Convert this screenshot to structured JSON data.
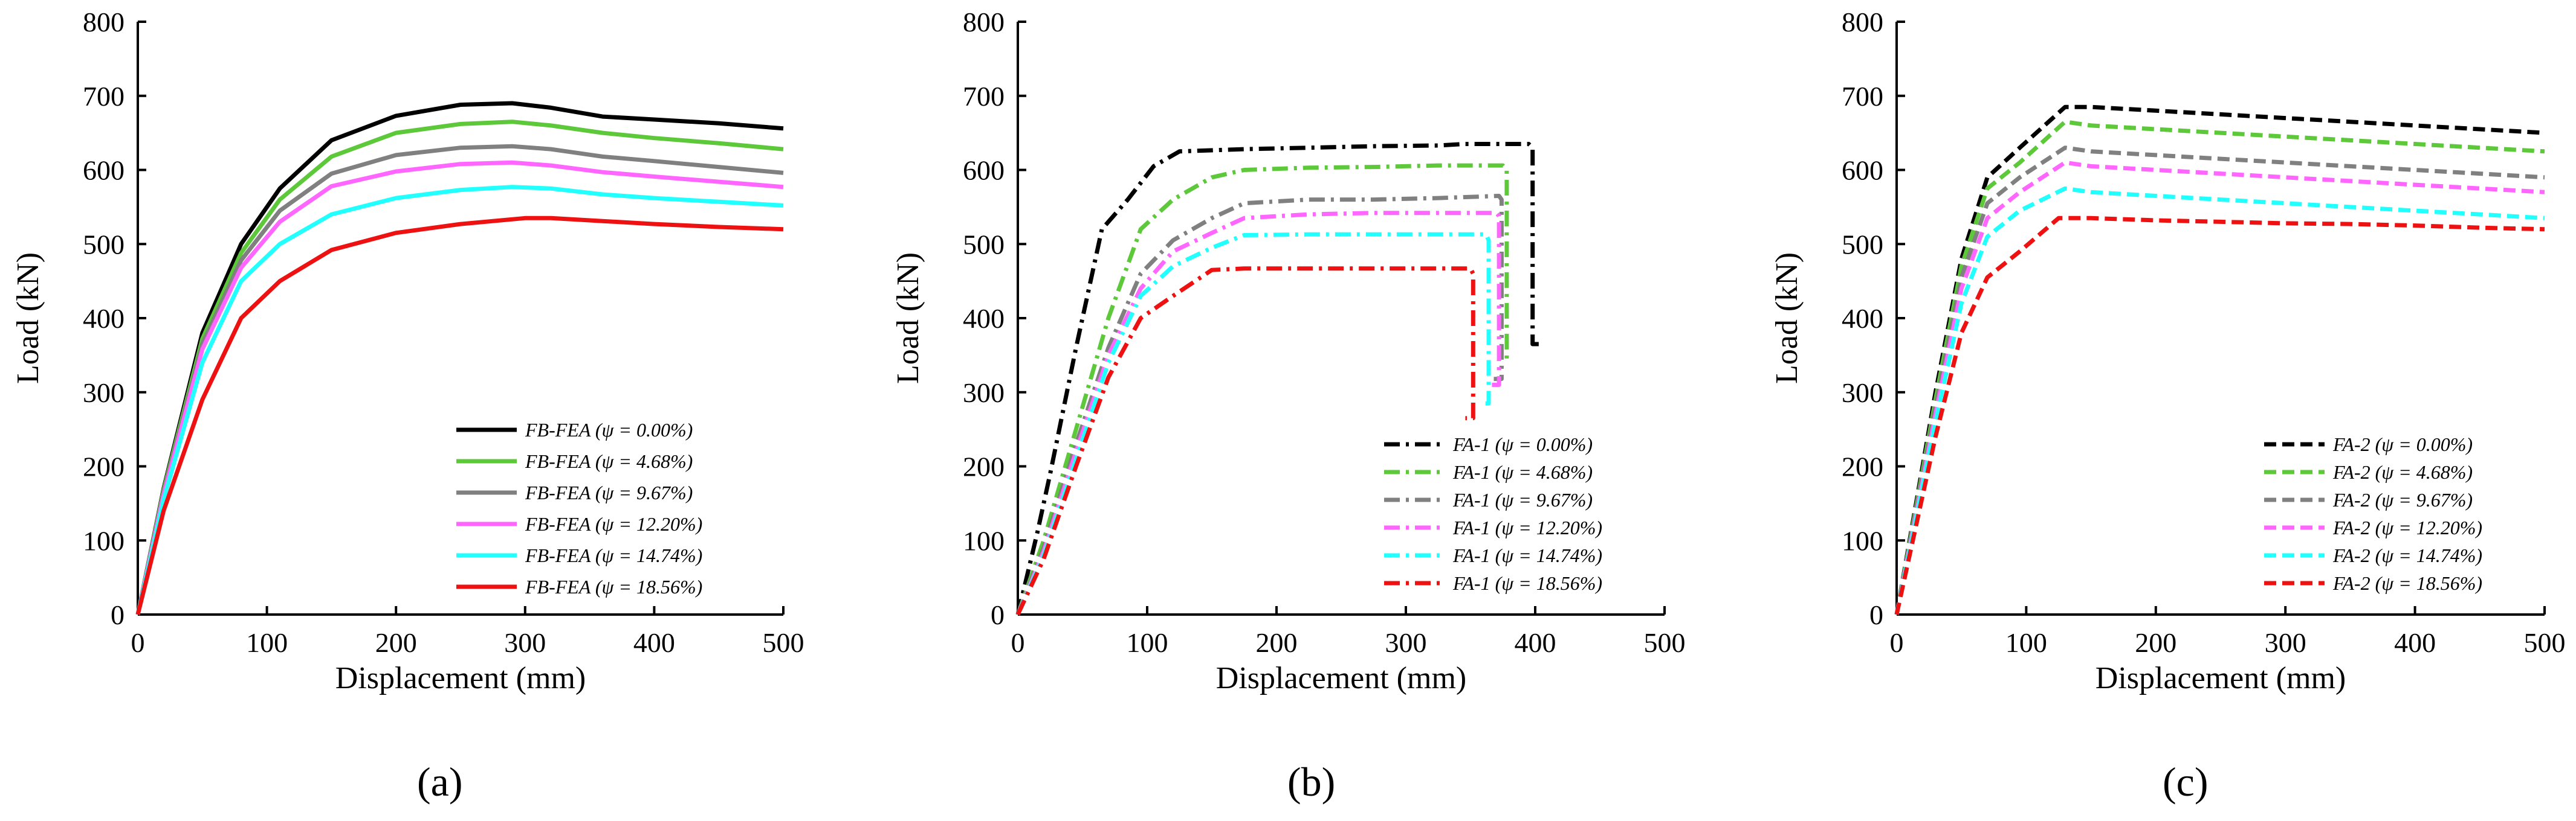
{
  "chart_data": [
    {
      "type": "line",
      "panel_label": "(a)",
      "xlabel": "Displacement (mm)",
      "ylabel": "Load (kN)",
      "xlim": [
        0,
        500
      ],
      "ylim": [
        0,
        800
      ],
      "xticks": [
        "0",
        "100",
        "200",
        "300",
        "400",
        "500"
      ],
      "yticks": [
        "0",
        "100",
        "200",
        "300",
        "400",
        "500",
        "600",
        "700",
        "800"
      ],
      "grid": false,
      "legend_position": "bottom-right",
      "line_style": "solid",
      "series": [
        {
          "name": "FB-FEA (ψ = 0.00%)",
          "color": "#000000",
          "x": [
            0,
            20,
            50,
            80,
            110,
            150,
            200,
            250,
            290,
            320,
            360,
            400,
            450,
            500
          ],
          "y": [
            0,
            170,
            380,
            500,
            575,
            640,
            673,
            688,
            690,
            684,
            672,
            668,
            663,
            656
          ]
        },
        {
          "name": "FB-FEA (ψ = 4.68%)",
          "color": "#5cc83a",
          "x": [
            0,
            20,
            50,
            80,
            110,
            150,
            200,
            250,
            290,
            320,
            360,
            400,
            450,
            500
          ],
          "y": [
            0,
            168,
            372,
            488,
            560,
            618,
            650,
            662,
            665,
            660,
            650,
            643,
            636,
            628
          ]
        },
        {
          "name": "FB-FEA (ψ = 9.67%)",
          "color": "#808080",
          "x": [
            0,
            20,
            50,
            80,
            110,
            150,
            200,
            250,
            290,
            320,
            360,
            400,
            450,
            500
          ],
          "y": [
            0,
            165,
            365,
            478,
            545,
            595,
            620,
            630,
            632,
            628,
            618,
            612,
            604,
            596
          ]
        },
        {
          "name": "FB-FEA (ψ = 12.20%)",
          "color": "#ff66ff",
          "x": [
            0,
            20,
            50,
            80,
            110,
            150,
            200,
            250,
            290,
            320,
            360,
            400,
            450,
            500
          ],
          "y": [
            0,
            162,
            358,
            468,
            530,
            578,
            598,
            608,
            610,
            606,
            597,
            591,
            584,
            577
          ]
        },
        {
          "name": "FB-FEA (ψ = 14.74%)",
          "color": "#22ffff",
          "x": [
            0,
            20,
            50,
            80,
            110,
            150,
            200,
            250,
            290,
            320,
            360,
            400,
            450,
            500
          ],
          "y": [
            0,
            155,
            340,
            450,
            500,
            540,
            562,
            573,
            577,
            575,
            567,
            562,
            557,
            552
          ]
        },
        {
          "name": "FB-FEA (ψ = 18.56%)",
          "color": "#ee1111",
          "x": [
            0,
            20,
            50,
            80,
            110,
            150,
            200,
            250,
            300,
            320,
            360,
            400,
            450,
            500
          ],
          "y": [
            0,
            140,
            290,
            400,
            450,
            492,
            515,
            527,
            535,
            535,
            531,
            527,
            523,
            520
          ]
        }
      ]
    },
    {
      "type": "line",
      "panel_label": "(b)",
      "xlabel": "Displacement (mm)",
      "ylabel": "Load (kN)",
      "xlim": [
        0,
        500
      ],
      "ylim": [
        0,
        800
      ],
      "xticks": [
        "0",
        "100",
        "200",
        "300",
        "400",
        "500"
      ],
      "yticks": [
        "0",
        "100",
        "200",
        "300",
        "400",
        "500",
        "600",
        "700",
        "800"
      ],
      "grid": false,
      "legend_position": "bottom-right",
      "line_style": "dash-dot",
      "series": [
        {
          "name": "FA-1 (ψ = 0.00%)",
          "color": "#000000",
          "x": [
            0,
            15,
            25,
            45,
            65,
            85,
            105,
            125,
            175,
            225,
            275,
            325,
            345,
            395,
            398,
            398,
            405
          ],
          "y": [
            0,
            110,
            190,
            360,
            520,
            560,
            605,
            625,
            628,
            630,
            632,
            633,
            635,
            635,
            630,
            365,
            365
          ]
        },
        {
          "name": "FA-1 (ψ = 4.68%)",
          "color": "#5cc83a",
          "x": [
            0,
            20,
            45,
            70,
            95,
            120,
            150,
            175,
            225,
            275,
            325,
            375,
            378,
            378,
            372
          ],
          "y": [
            0,
            100,
            250,
            400,
            520,
            560,
            590,
            600,
            603,
            604,
            606,
            606,
            600,
            345,
            345
          ]
        },
        {
          "name": "FA-1 (ψ = 9.67%)",
          "color": "#808080",
          "x": [
            0,
            20,
            45,
            70,
            95,
            120,
            150,
            175,
            225,
            275,
            325,
            372,
            374,
            374,
            368
          ],
          "y": [
            0,
            90,
            230,
            360,
            460,
            505,
            535,
            555,
            560,
            560,
            562,
            565,
            560,
            318,
            318
          ]
        },
        {
          "name": "FA-1 (ψ = 12.20%)",
          "color": "#ff66ff",
          "x": [
            0,
            20,
            45,
            70,
            95,
            120,
            150,
            175,
            225,
            275,
            325,
            370,
            372,
            372,
            366
          ],
          "y": [
            0,
            85,
            220,
            350,
            440,
            490,
            515,
            535,
            540,
            542,
            542,
            542,
            538,
            310,
            310
          ]
        },
        {
          "name": "FA-1 (ψ = 14.74%)",
          "color": "#22ffff",
          "x": [
            0,
            20,
            45,
            70,
            95,
            120,
            150,
            175,
            225,
            275,
            325,
            362,
            364,
            364,
            358
          ],
          "y": [
            0,
            80,
            210,
            340,
            430,
            470,
            495,
            512,
            513,
            513,
            513,
            513,
            505,
            285,
            285
          ]
        },
        {
          "name": "FA-1 (ψ = 18.56%)",
          "color": "#ee1111",
          "x": [
            0,
            20,
            45,
            70,
            95,
            120,
            150,
            175,
            225,
            275,
            325,
            350,
            352,
            352,
            346
          ],
          "y": [
            0,
            75,
            200,
            320,
            400,
            430,
            465,
            467,
            467,
            467,
            467,
            467,
            460,
            265,
            265
          ]
        }
      ]
    },
    {
      "type": "line",
      "panel_label": "(c)",
      "xlabel": "Displacement (mm)",
      "ylabel": "Load (kN)",
      "xlim": [
        0,
        500
      ],
      "ylim": [
        0,
        800
      ],
      "xticks": [
        "0",
        "100",
        "200",
        "300",
        "400",
        "500"
      ],
      "yticks": [
        "0",
        "100",
        "200",
        "300",
        "400",
        "500",
        "600",
        "700",
        "800"
      ],
      "grid": false,
      "legend_position": "bottom-right",
      "line_style": "dashed",
      "series": [
        {
          "name": "FA-2 (ψ = 0.00%)",
          "color": "#000000",
          "x": [
            0,
            30,
            50,
            70,
            95,
            130,
            150,
            200,
            250,
            300,
            350,
            400,
            450,
            500
          ],
          "y": [
            0,
            300,
            480,
            590,
            630,
            685,
            685,
            680,
            675,
            670,
            665,
            660,
            655,
            650
          ]
        },
        {
          "name": "FA-2 (ψ = 4.68%)",
          "color": "#5cc83a",
          "x": [
            0,
            30,
            50,
            70,
            95,
            130,
            150,
            200,
            250,
            300,
            350,
            400,
            450,
            500
          ],
          "y": [
            0,
            290,
            470,
            575,
            610,
            665,
            660,
            655,
            650,
            645,
            640,
            635,
            630,
            625
          ]
        },
        {
          "name": "FA-2 (ψ = 9.67%)",
          "color": "#808080",
          "x": [
            0,
            30,
            50,
            70,
            95,
            130,
            150,
            200,
            250,
            300,
            350,
            400,
            450,
            500
          ],
          "y": [
            0,
            280,
            455,
            555,
            590,
            630,
            625,
            620,
            615,
            610,
            605,
            600,
            595,
            590
          ]
        },
        {
          "name": "FA-2 (ψ = 12.20%)",
          "color": "#ff66ff",
          "x": [
            0,
            30,
            50,
            70,
            95,
            130,
            150,
            200,
            250,
            300,
            350,
            400,
            450,
            500
          ],
          "y": [
            0,
            270,
            440,
            535,
            570,
            610,
            605,
            600,
            595,
            590,
            585,
            580,
            575,
            570
          ]
        },
        {
          "name": "FA-2 (ψ = 14.74%)",
          "color": "#22ffff",
          "x": [
            0,
            30,
            50,
            70,
            95,
            130,
            150,
            200,
            250,
            300,
            350,
            400,
            450,
            500
          ],
          "y": [
            0,
            260,
            420,
            510,
            545,
            575,
            570,
            565,
            560,
            555,
            550,
            545,
            540,
            535
          ]
        },
        {
          "name": "FA-2 (ψ = 18.56%)",
          "color": "#ee1111",
          "x": [
            0,
            30,
            50,
            70,
            95,
            125,
            150,
            200,
            250,
            300,
            350,
            400,
            450,
            500
          ],
          "y": [
            0,
            240,
            380,
            455,
            490,
            535,
            535,
            532,
            530,
            528,
            527,
            525,
            522,
            520
          ]
        }
      ]
    }
  ]
}
